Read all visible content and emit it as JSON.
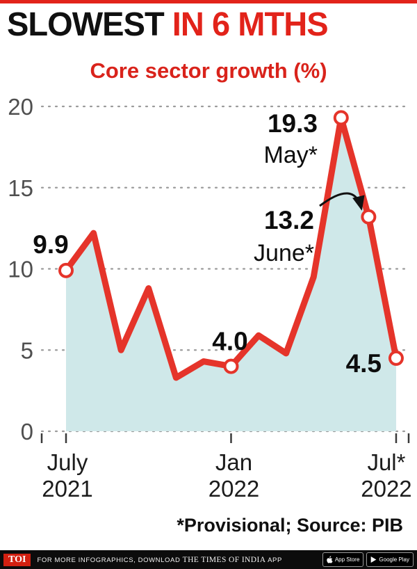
{
  "headline": {
    "black": "SLOWEST",
    "red": " IN 6 MTHS"
  },
  "chart_data": {
    "type": "area",
    "title": "Core sector growth (%)",
    "xlabel": "",
    "ylabel": "Core sector growth (%)",
    "x": [
      "Jul 2021",
      "Aug 2021",
      "Sep 2021",
      "Oct 2021",
      "Nov 2021",
      "Dec 2021",
      "Jan 2022",
      "Feb 2022",
      "Mar 2022",
      "Apr 2022",
      "May 2022",
      "Jun 2022",
      "Jul 2022"
    ],
    "values": [
      9.9,
      12.2,
      5.0,
      8.8,
      3.3,
      4.3,
      4.0,
      5.9,
      4.8,
      9.5,
      19.3,
      13.2,
      4.5
    ],
    "ylim": [
      0,
      20
    ],
    "yticks": [
      0,
      5,
      10,
      15,
      20
    ],
    "grid": "dotted-horizontal",
    "legend": "none",
    "line_color": "#e5342a",
    "fill_color": "#cfe8e9",
    "x_axis_labels": [
      {
        "index": 0,
        "line1": "July",
        "line2": "2021"
      },
      {
        "index": 6,
        "line1": "Jan",
        "line2": "2022"
      },
      {
        "index": 12,
        "line1": "Jul*",
        "line2": "2022"
      }
    ],
    "markers": [
      0,
      6,
      10,
      11,
      12
    ],
    "annotations": [
      {
        "index": 0,
        "text": "9.9"
      },
      {
        "index": 6,
        "text": "4.0"
      },
      {
        "index": 10,
        "text": "19.3",
        "sub": "May*"
      },
      {
        "index": 11,
        "text": "13.2",
        "sub": "June*",
        "arrow": true
      },
      {
        "index": 12,
        "text": "4.5"
      }
    ]
  },
  "footnote": "*Provisional; Source: PIB",
  "footer": {
    "logo": "TOI",
    "text_prefix": "FOR MORE INFOGRAPHICS, DOWNLOAD ",
    "text_brand": "THE TIMES OF INDIA",
    "text_suffix": " APP",
    "badges": [
      {
        "label": "App Store"
      },
      {
        "label": "Google Play"
      }
    ]
  },
  "colors": {
    "accent_red": "#e2231a",
    "line_red": "#e5342a",
    "area_teal": "#cfe8e9",
    "grid_gray": "#9b9b9b",
    "footer_black": "#0c0c0c"
  }
}
